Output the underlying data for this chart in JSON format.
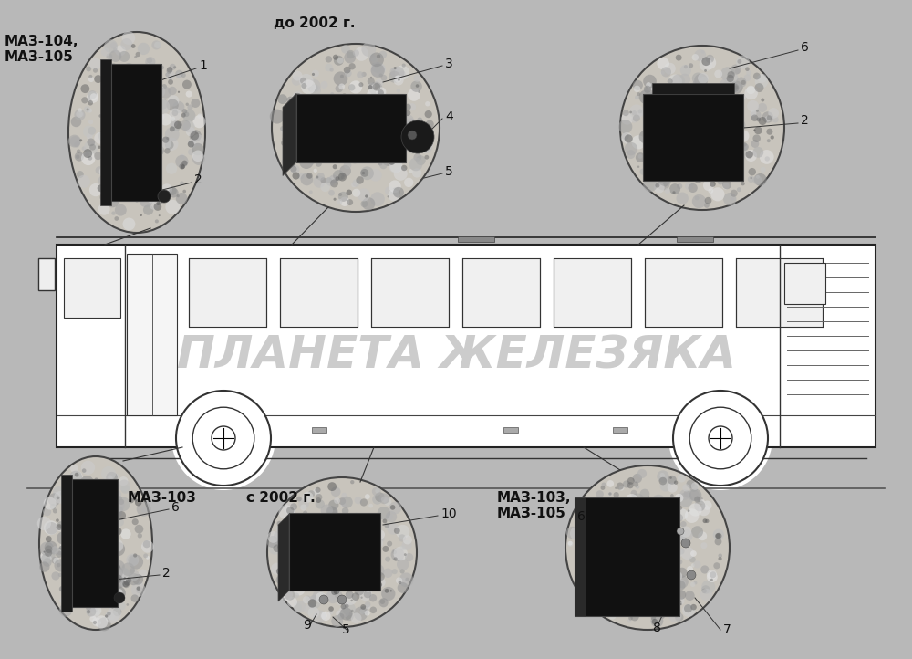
{
  "bg_color": "#b8b8b8",
  "fig_width": 10.0,
  "fig_height": 7.22,
  "watermark_text": "ПЛАНЕТА ЖЕЛЕЗЯКА",
  "watermark_color": "#aaaaaa",
  "watermark_alpha": 0.6,
  "labels": {
    "maz104_105": "МАЗ-104,\nМАЗ-105",
    "do2002": "до 2002 г.",
    "maz103": "МАЗ-103",
    "s2002": "с 2002 г.",
    "maz103_105": "МАЗ-103,\nМАЗ-105"
  },
  "detail_bg": "#c8c4bc",
  "detail_edge": "#444444",
  "lamp_color": "#1a1a1a",
  "line_color": "#333333",
  "bus_line_color": "#333333",
  "label_color": "#111111",
  "font_size_label": 11,
  "font_size_num": 10
}
